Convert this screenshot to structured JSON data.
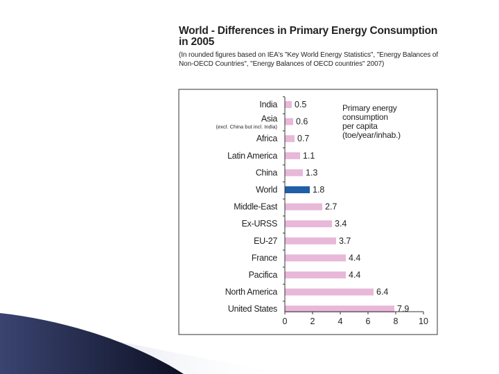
{
  "title": "World - Differences in Primary Energy Consumption in 2005",
  "source_note": "(In rounded figures based on IEA's \"Key World Energy Statistics\", \"Energy Balances of Non-OECD Countries\", \"Energy Balances of OECD countries\" 2007)",
  "colors": {
    "bar": "#e8b8d8",
    "highlight": "#1f5fa8",
    "deco_dark": "#1a1f3a",
    "deco_light": "#9fa8c8"
  },
  "chart_data": {
    "type": "bar",
    "orientation": "horizontal",
    "legend_text": [
      "Primary energy",
      "consumption",
      "per capita",
      "(toe/year/inhab.)"
    ],
    "categories": [
      "India",
      "Asia",
      "Africa",
      "Latin America",
      "China",
      "World",
      "Middle-East",
      "Ex-URSS",
      "EU-27",
      "France",
      "Pacifica",
      "North America",
      "United States"
    ],
    "category_notes": {
      "Asia": "(excl. China but incl. India)"
    },
    "values": [
      0.5,
      0.6,
      0.7,
      1.1,
      1.3,
      1.8,
      2.7,
      3.4,
      3.7,
      4.4,
      4.4,
      6.4,
      7.9
    ],
    "value_labels": [
      "0.5",
      "0.6",
      "0.7",
      "1.1",
      "1.3",
      "1.8",
      "2.7",
      "3.4",
      "3.7",
      "4.4",
      "4.4",
      "6.4",
      "7.9"
    ],
    "highlighted": "World",
    "xlim": [
      0,
      10
    ],
    "xticks": [
      "0",
      "2",
      "4",
      "6",
      "8",
      "10"
    ],
    "grid": false
  }
}
